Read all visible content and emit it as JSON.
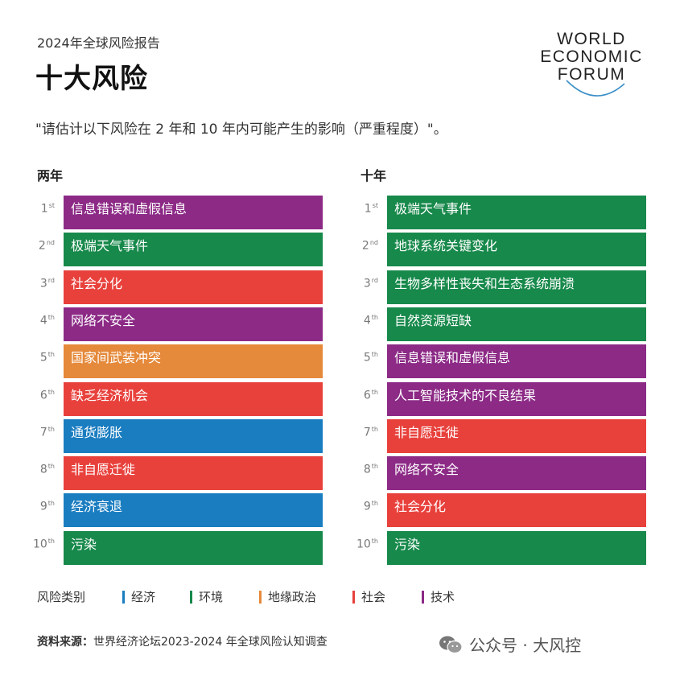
{
  "header": {
    "subtitle": "2024年全球风险报告",
    "title": "十大风险",
    "question": "\"请估计以下风险在 2 年和 10 年内可能产生的影响（严重程度）\"。"
  },
  "logo": {
    "lines": [
      "WORLD",
      "ECONOMIC",
      "FORUM"
    ]
  },
  "colors": {
    "经济": "#1a7dc0",
    "环境": "#17894b",
    "地缘政治": "#e5893a",
    "社会": "#e8413c",
    "技术": "#8c2a86"
  },
  "chart_data": [
    {
      "type": "table",
      "title": "两年",
      "ranks": [
        {
          "num": "1",
          "suffix": "st",
          "label": "信息错误和虚假信息",
          "category": "技术"
        },
        {
          "num": "2",
          "suffix": "nd",
          "label": "极端天气事件",
          "category": "环境"
        },
        {
          "num": "3",
          "suffix": "rd",
          "label": "社会分化",
          "category": "社会"
        },
        {
          "num": "4",
          "suffix": "th",
          "label": "网络不安全",
          "category": "技术"
        },
        {
          "num": "5",
          "suffix": "th",
          "label": "国家间武装冲突",
          "category": "地缘政治"
        },
        {
          "num": "6",
          "suffix": "th",
          "label": "缺乏经济机会",
          "category": "社会"
        },
        {
          "num": "7",
          "suffix": "th",
          "label": "通货膨胀",
          "category": "经济"
        },
        {
          "num": "8",
          "suffix": "th",
          "label": "非自愿迁徙",
          "category": "社会"
        },
        {
          "num": "9",
          "suffix": "th",
          "label": "经济衰退",
          "category": "经济"
        },
        {
          "num": "10",
          "suffix": "th",
          "label": "污染",
          "category": "环境"
        }
      ]
    },
    {
      "type": "table",
      "title": "十年",
      "ranks": [
        {
          "num": "1",
          "suffix": "st",
          "label": "极端天气事件",
          "category": "环境"
        },
        {
          "num": "2",
          "suffix": "nd",
          "label": "地球系统关键变化",
          "category": "环境"
        },
        {
          "num": "3",
          "suffix": "rd",
          "label": "生物多样性丧失和生态系统崩溃",
          "category": "环境"
        },
        {
          "num": "4",
          "suffix": "th",
          "label": "自然资源短缺",
          "category": "环境"
        },
        {
          "num": "5",
          "suffix": "th",
          "label": "信息错误和虚假信息",
          "category": "技术"
        },
        {
          "num": "6",
          "suffix": "th",
          "label": "人工智能技术的不良结果",
          "category": "技术"
        },
        {
          "num": "7",
          "suffix": "th",
          "label": "非自愿迁徙",
          "category": "社会"
        },
        {
          "num": "8",
          "suffix": "th",
          "label": "网络不安全",
          "category": "技术"
        },
        {
          "num": "9",
          "suffix": "th",
          "label": "社会分化",
          "category": "社会"
        },
        {
          "num": "10",
          "suffix": "th",
          "label": "污染",
          "category": "环境"
        }
      ]
    }
  ],
  "legend": {
    "title": "风险类别",
    "items": [
      "经济",
      "环境",
      "地缘政治",
      "社会",
      "技术"
    ]
  },
  "source": {
    "label": "资料来源：",
    "text": "世界经济论坛2023-2024 年全球风险认知调查"
  },
  "watermark": {
    "icon": "wechat-icon",
    "text": "公众号 · 大风控"
  }
}
